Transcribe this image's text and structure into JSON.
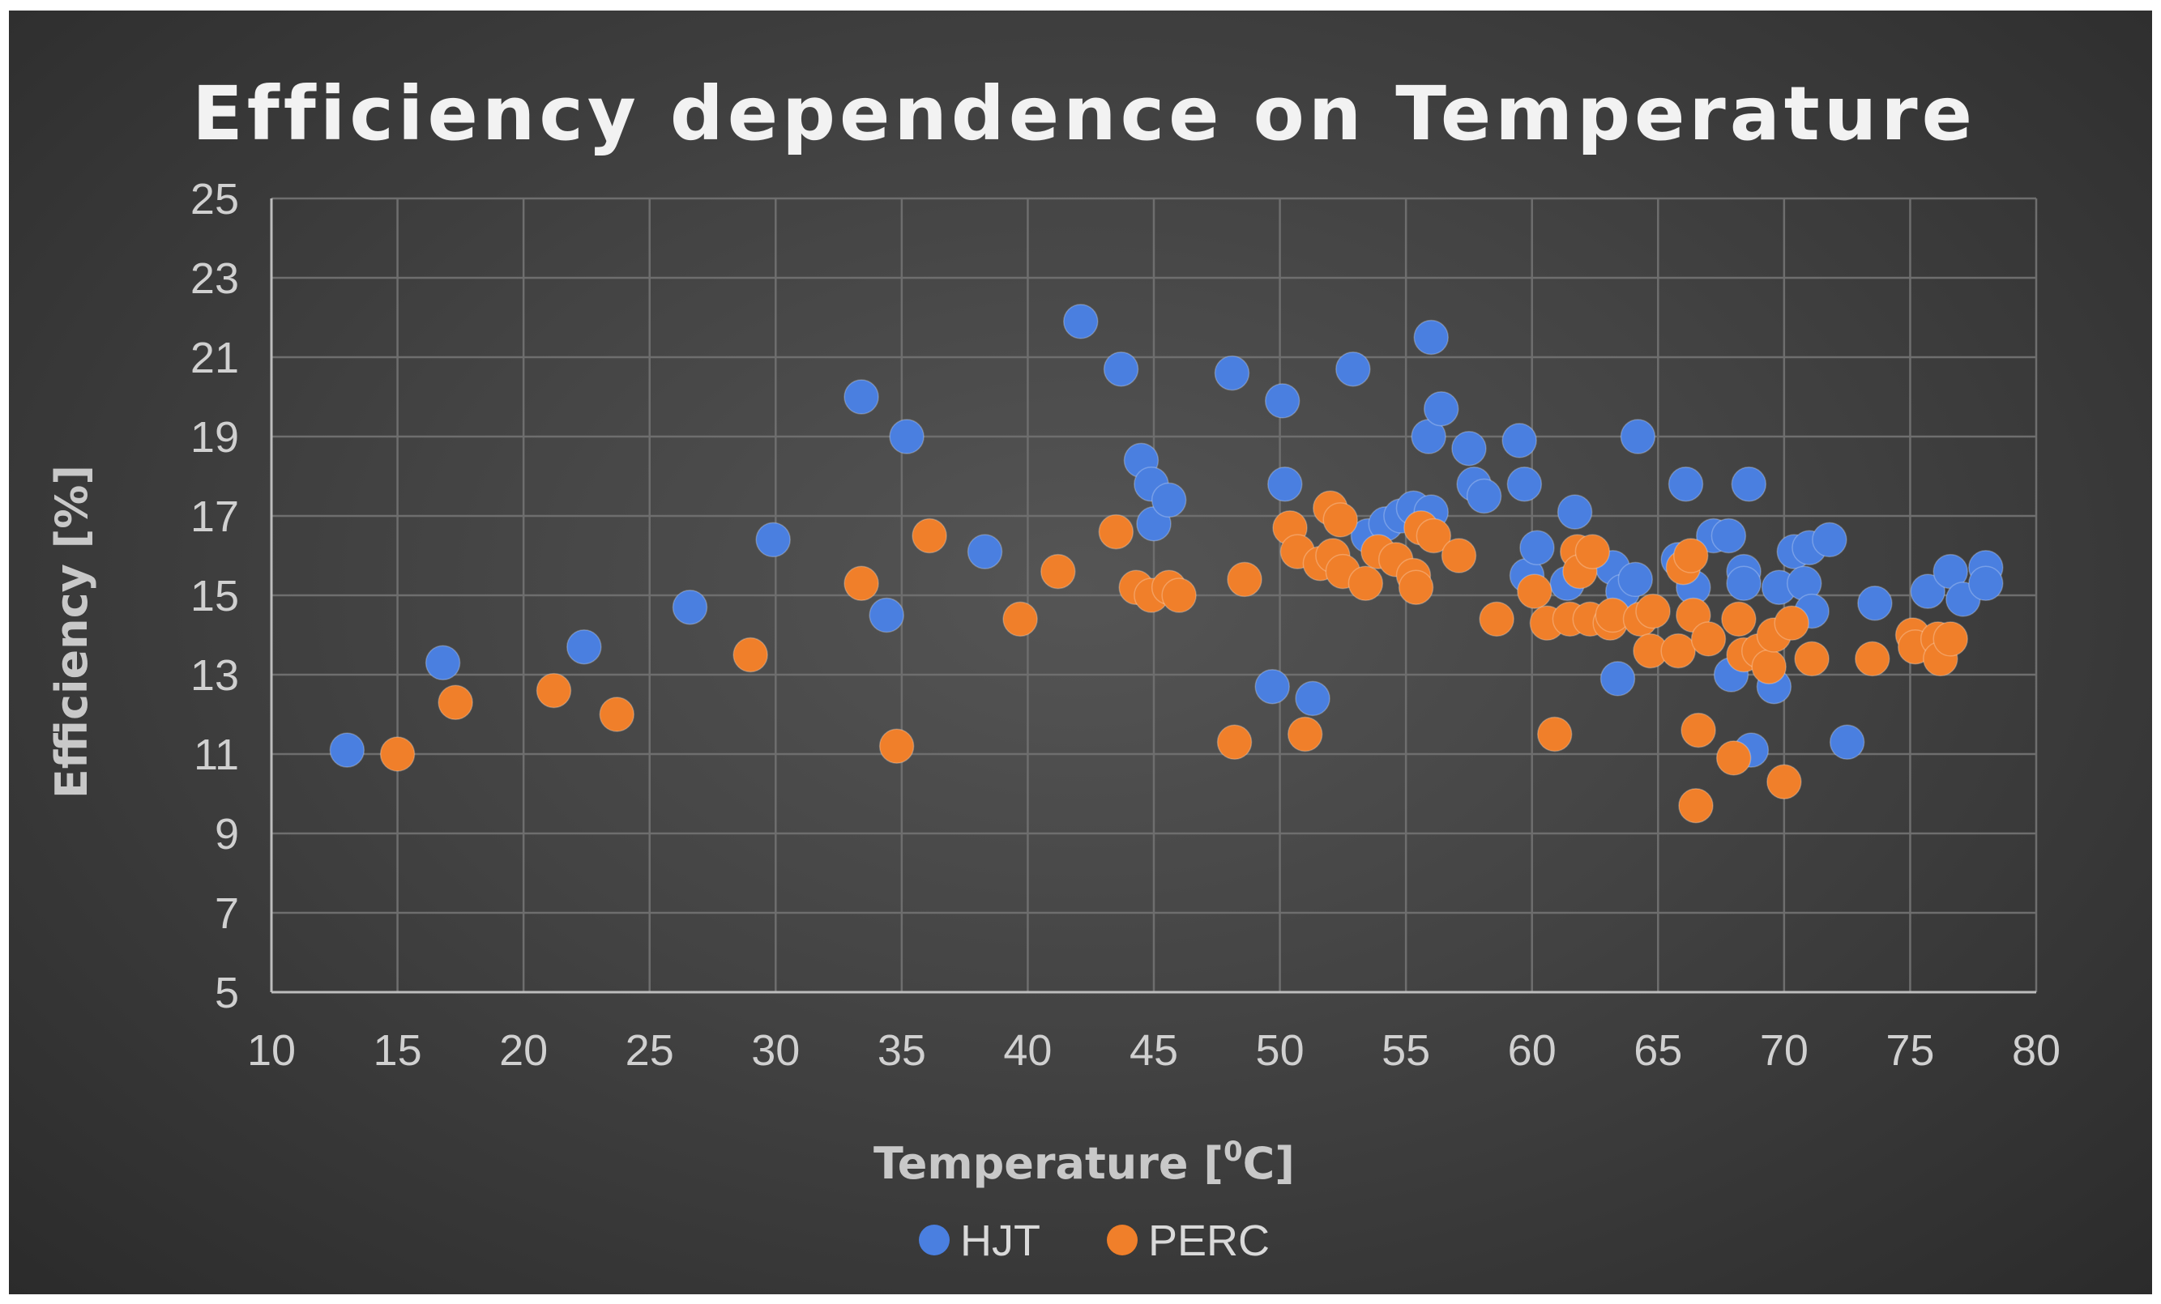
{
  "chart_data": {
    "type": "scatter",
    "title": "Efficiency dependence on Temperature",
    "xlabel": "Temperature [",
    "xlabel_sup": "0",
    "xlabel_unit": "C]",
    "ylabel": "Efficiency [%]",
    "xlim": [
      10,
      80
    ],
    "ylim": [
      5,
      25
    ],
    "xticks": [
      10,
      15,
      20,
      25,
      30,
      35,
      40,
      45,
      50,
      55,
      60,
      65,
      70,
      75,
      80
    ],
    "yticks": [
      5,
      7,
      9,
      11,
      13,
      15,
      17,
      19,
      21,
      23,
      25
    ],
    "grid": true,
    "legend_position": "bottom",
    "series": [
      {
        "name": "HJT",
        "color": "#4a7fe0",
        "points": [
          [
            13.0,
            11.1
          ],
          [
            16.8,
            13.3
          ],
          [
            22.4,
            13.7
          ],
          [
            26.6,
            14.7
          ],
          [
            29.9,
            16.4
          ],
          [
            33.4,
            20.0
          ],
          [
            34.4,
            14.5
          ],
          [
            35.2,
            19.0
          ],
          [
            38.3,
            16.1
          ],
          [
            42.1,
            21.9
          ],
          [
            43.7,
            20.7
          ],
          [
            44.5,
            18.4
          ],
          [
            44.9,
            17.8
          ],
          [
            45.0,
            16.8
          ],
          [
            45.6,
            17.4
          ],
          [
            48.1,
            20.6
          ],
          [
            49.7,
            12.7
          ],
          [
            50.1,
            19.9
          ],
          [
            50.2,
            17.8
          ],
          [
            51.3,
            12.4
          ],
          [
            52.9,
            20.7
          ],
          [
            53.5,
            16.5
          ],
          [
            54.2,
            16.8
          ],
          [
            54.8,
            17.0
          ],
          [
            55.3,
            17.2
          ],
          [
            55.9,
            19.0
          ],
          [
            56.0,
            21.5
          ],
          [
            56.0,
            17.1
          ],
          [
            56.4,
            19.7
          ],
          [
            57.5,
            18.7
          ],
          [
            57.7,
            17.8
          ],
          [
            58.1,
            17.5
          ],
          [
            59.5,
            18.9
          ],
          [
            59.7,
            17.8
          ],
          [
            59.8,
            15.5
          ],
          [
            60.2,
            16.2
          ],
          [
            61.4,
            15.3
          ],
          [
            61.7,
            17.1
          ],
          [
            63.2,
            15.7
          ],
          [
            63.4,
            12.9
          ],
          [
            63.6,
            15.1
          ],
          [
            64.1,
            15.4
          ],
          [
            64.2,
            19.0
          ],
          [
            65.8,
            15.9
          ],
          [
            66.1,
            17.8
          ],
          [
            66.4,
            15.2
          ],
          [
            67.2,
            16.5
          ],
          [
            67.8,
            16.5
          ],
          [
            67.9,
            13.0
          ],
          [
            68.4,
            15.6
          ],
          [
            68.4,
            15.3
          ],
          [
            68.6,
            17.8
          ],
          [
            68.7,
            11.1
          ],
          [
            69.6,
            12.7
          ],
          [
            69.8,
            15.2
          ],
          [
            70.4,
            16.1
          ],
          [
            70.8,
            15.3
          ],
          [
            71.0,
            16.2
          ],
          [
            71.1,
            14.6
          ],
          [
            71.8,
            16.4
          ],
          [
            72.5,
            11.3
          ],
          [
            73.6,
            14.8
          ],
          [
            75.7,
            15.1
          ],
          [
            76.6,
            15.6
          ],
          [
            77.1,
            14.9
          ],
          [
            78.0,
            15.7
          ],
          [
            78.0,
            15.3
          ]
        ]
      },
      {
        "name": "PERC",
        "color": "#f07f2a",
        "points": [
          [
            15.0,
            11.0
          ],
          [
            17.3,
            12.3
          ],
          [
            21.2,
            12.6
          ],
          [
            23.7,
            12.0
          ],
          [
            29.0,
            13.5
          ],
          [
            33.4,
            15.3
          ],
          [
            34.8,
            11.2
          ],
          [
            36.1,
            16.5
          ],
          [
            39.7,
            14.4
          ],
          [
            41.2,
            15.6
          ],
          [
            43.5,
            16.6
          ],
          [
            44.3,
            15.2
          ],
          [
            44.9,
            15.0
          ],
          [
            45.6,
            15.2
          ],
          [
            46.0,
            15.0
          ],
          [
            48.2,
            11.3
          ],
          [
            48.6,
            15.4
          ],
          [
            50.4,
            16.7
          ],
          [
            50.7,
            16.1
          ],
          [
            51.0,
            11.5
          ],
          [
            51.6,
            15.8
          ],
          [
            52.1,
            16.0
          ],
          [
            52.0,
            17.2
          ],
          [
            52.4,
            16.9
          ],
          [
            52.5,
            15.6
          ],
          [
            53.4,
            15.3
          ],
          [
            53.9,
            16.1
          ],
          [
            54.6,
            15.9
          ],
          [
            55.3,
            15.5
          ],
          [
            55.4,
            15.2
          ],
          [
            55.6,
            16.7
          ],
          [
            56.1,
            16.5
          ],
          [
            57.1,
            16.0
          ],
          [
            58.6,
            14.4
          ],
          [
            60.1,
            15.1
          ],
          [
            60.6,
            14.3
          ],
          [
            60.9,
            11.5
          ],
          [
            61.5,
            14.4
          ],
          [
            61.8,
            16.1
          ],
          [
            61.9,
            15.6
          ],
          [
            62.4,
            16.1
          ],
          [
            62.3,
            14.4
          ],
          [
            63.1,
            14.3
          ],
          [
            63.2,
            14.5
          ],
          [
            64.3,
            14.4
          ],
          [
            64.7,
            13.6
          ],
          [
            64.8,
            14.6
          ],
          [
            65.8,
            13.6
          ],
          [
            66.0,
            15.7
          ],
          [
            66.3,
            16.0
          ],
          [
            66.4,
            14.5
          ],
          [
            66.5,
            9.7
          ],
          [
            66.6,
            11.6
          ],
          [
            67.0,
            13.9
          ],
          [
            68.0,
            10.9
          ],
          [
            68.2,
            14.4
          ],
          [
            68.4,
            13.5
          ],
          [
            69.0,
            13.6
          ],
          [
            69.4,
            13.2
          ],
          [
            69.6,
            14.0
          ],
          [
            70.0,
            10.3
          ],
          [
            70.3,
            14.3
          ],
          [
            71.1,
            13.4
          ],
          [
            73.5,
            13.4
          ],
          [
            75.1,
            14.0
          ],
          [
            75.2,
            13.7
          ],
          [
            76.1,
            13.9
          ],
          [
            76.2,
            13.4
          ],
          [
            76.6,
            13.9
          ]
        ]
      }
    ]
  }
}
